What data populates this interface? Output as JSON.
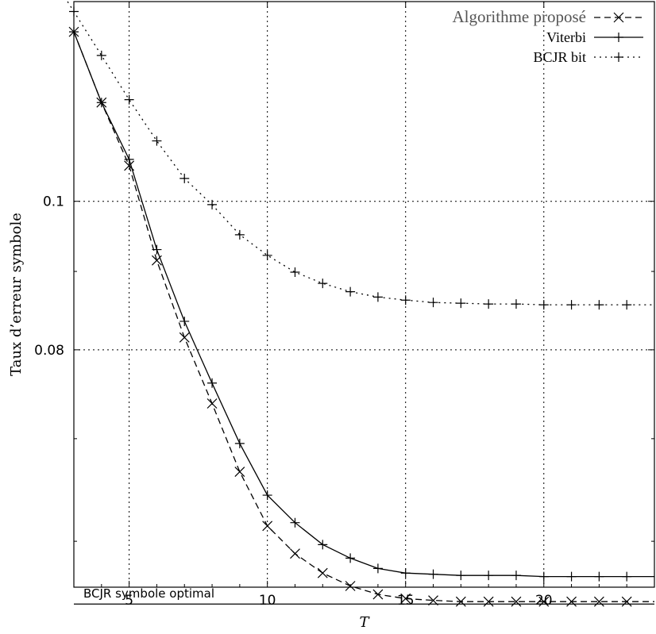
{
  "chart_data": {
    "type": "line",
    "xlabel": "T",
    "ylabel": "Taux d’erreur symbole",
    "xlim": [
      3,
      24
    ],
    "ylim": [
      0.056,
      0.135
    ],
    "y_scale": "log",
    "x_ticks": [
      5,
      10,
      15,
      20
    ],
    "y_ticks": [
      0.08,
      0.1
    ],
    "y_tick_labels": [
      "0.08",
      "0.1"
    ],
    "grid": true,
    "legend_position": "top-right",
    "series": [
      {
        "name": "Algorithme proposé",
        "style": "dashed",
        "marker": "x",
        "color": "#000000",
        "x": [
          3,
          4,
          5,
          6,
          7,
          8,
          9,
          10,
          11,
          12,
          13,
          14,
          15,
          16,
          17,
          18,
          19,
          20,
          21,
          22,
          23,
          24
        ],
        "y": [
          0.129,
          0.116,
          0.1055,
          0.0915,
          0.0815,
          0.0738,
          0.0666,
          0.0614,
          0.0589,
          0.0572,
          0.0561,
          0.0554,
          0.05505,
          0.0549,
          0.0548,
          0.0548,
          0.0548,
          0.0548,
          0.0548,
          0.0548,
          0.0548,
          0.0548
        ]
      },
      {
        "name": "Viterbi",
        "style": "solid",
        "marker": "+",
        "color": "#000000",
        "x": [
          3,
          4,
          5,
          6,
          7,
          8,
          9,
          10,
          11,
          12,
          13,
          14,
          15,
          16,
          17,
          18,
          19,
          20,
          21,
          22,
          23,
          24
        ],
        "y": [
          0.129,
          0.116,
          0.1065,
          0.093,
          0.0835,
          0.0761,
          0.0695,
          0.0643,
          0.0617,
          0.0597,
          0.0585,
          0.0576,
          0.0572,
          0.0571,
          0.057,
          0.057,
          0.057,
          0.0569,
          0.0569,
          0.0569,
          0.0569,
          0.0569
        ]
      },
      {
        "name": "BCJR bit",
        "style": "dotted",
        "marker": "+",
        "color": "#000000",
        "x": [
          3,
          4,
          5,
          6,
          7,
          8,
          9,
          10,
          11,
          12,
          13,
          14,
          15,
          16,
          17,
          18,
          19,
          20,
          21,
          22,
          23,
          24
        ],
        "y": [
          0.133,
          0.1245,
          0.1165,
          0.1095,
          0.1035,
          0.0995,
          0.0951,
          0.0922,
          0.0899,
          0.0884,
          0.0873,
          0.0866,
          0.0862,
          0.0859,
          0.0858,
          0.0857,
          0.0857,
          0.0856,
          0.0856,
          0.0856,
          0.0856,
          0.0856
        ]
      }
    ],
    "reference_line": {
      "label": "BCJR symbole optimal",
      "y": 0.0546,
      "style": "solid"
    }
  }
}
